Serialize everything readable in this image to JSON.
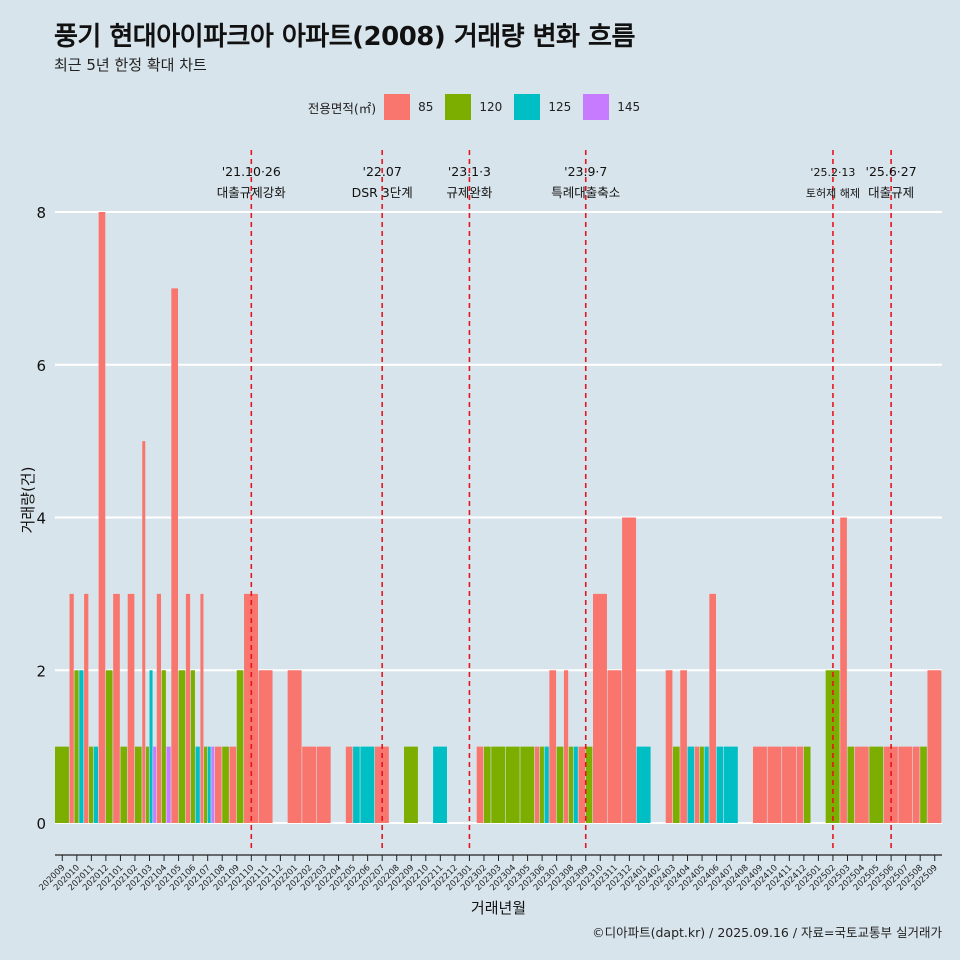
{
  "title": "풍기 현대아이파크아 아파트(2008) 거래량 변화 흐름",
  "subtitle": "최근 5년 한정 확대 차트",
  "footer": "©디아파트(dapt.kr) / 2025.09.16 / 자료=국토교통부 실거래가",
  "legend": {
    "title": "전용면적(㎡)",
    "items": [
      {
        "label": "85",
        "color": "#f8766d"
      },
      {
        "label": "120",
        "color": "#7cae00"
      },
      {
        "label": "125",
        "color": "#00bfc4"
      },
      {
        "label": "145",
        "color": "#c77cff"
      }
    ]
  },
  "chart_data": {
    "type": "bar",
    "xlabel": "거래년월",
    "ylabel": "거래량(건)",
    "ylim": [
      0,
      8
    ],
    "yticks": [
      0,
      2,
      4,
      6,
      8
    ],
    "grid": true,
    "legend_position": "top",
    "series_names": [
      "85",
      "120",
      "125",
      "145"
    ],
    "x_tick_labels": [
      "202009",
      "202010",
      "202011",
      "202012",
      "202101",
      "202102",
      "202103",
      "202104",
      "202105",
      "202106",
      "202107",
      "202108",
      "202109",
      "202110",
      "202111",
      "202112",
      "202201",
      "202202",
      "202203",
      "202204",
      "202205",
      "202206",
      "202207",
      "202208",
      "202209",
      "202210",
      "202211",
      "202212",
      "202301",
      "202302",
      "202303",
      "202304",
      "202305",
      "202306",
      "202307",
      "202308",
      "202309",
      "202310",
      "202311",
      "202312",
      "202401",
      "202402",
      "202403",
      "202404",
      "202405",
      "202406",
      "202407",
      "202408",
      "202409",
      "202410",
      "202411",
      "202412",
      "202501",
      "202502",
      "202503",
      "202504",
      "202505",
      "202506",
      "202507",
      "202508",
      "202509"
    ],
    "months": [
      {
        "m": "202009",
        "v": [
          0,
          1,
          0,
          0
        ]
      },
      {
        "m": "202010",
        "v": [
          3,
          2,
          2,
          0
        ]
      },
      {
        "m": "202011",
        "v": [
          3,
          1,
          1,
          0
        ]
      },
      {
        "m": "202012",
        "v": [
          8,
          2,
          0,
          0
        ]
      },
      {
        "m": "202101",
        "v": [
          3,
          1,
          0,
          0
        ]
      },
      {
        "m": "202102",
        "v": [
          3,
          1,
          0,
          0
        ]
      },
      {
        "m": "202103",
        "v": [
          5,
          1,
          2,
          1
        ]
      },
      {
        "m": "202104",
        "v": [
          3,
          2,
          0,
          1
        ]
      },
      {
        "m": "202105",
        "v": [
          7,
          2,
          0,
          0
        ]
      },
      {
        "m": "202106",
        "v": [
          3,
          2,
          1,
          0
        ]
      },
      {
        "m": "202107",
        "v": [
          3,
          1,
          1,
          1
        ]
      },
      {
        "m": "202108",
        "v": [
          1,
          1,
          0,
          0
        ]
      },
      {
        "m": "202109",
        "v": [
          1,
          2,
          0,
          0
        ]
      },
      {
        "m": "202110",
        "v": [
          3,
          0,
          0,
          0
        ]
      },
      {
        "m": "202111",
        "v": [
          2,
          0,
          0,
          0
        ]
      },
      {
        "m": "202112",
        "v": [
          0,
          0,
          0,
          0
        ]
      },
      {
        "m": "202201",
        "v": [
          2,
          0,
          0,
          0
        ]
      },
      {
        "m": "202202",
        "v": [
          1,
          0,
          0,
          0
        ]
      },
      {
        "m": "202203",
        "v": [
          1,
          0,
          0,
          0
        ]
      },
      {
        "m": "202204",
        "v": [
          0,
          0,
          0,
          0
        ]
      },
      {
        "m": "202205",
        "v": [
          1,
          0,
          1,
          0
        ]
      },
      {
        "m": "202206",
        "v": [
          0,
          0,
          1,
          0
        ]
      },
      {
        "m": "202207",
        "v": [
          1,
          0,
          0,
          0
        ]
      },
      {
        "m": "202208",
        "v": [
          0,
          0,
          0,
          0
        ]
      },
      {
        "m": "202209",
        "v": [
          0,
          1,
          0,
          0
        ]
      },
      {
        "m": "202210",
        "v": [
          0,
          0,
          0,
          0
        ]
      },
      {
        "m": "202211",
        "v": [
          0,
          0,
          1,
          0
        ]
      },
      {
        "m": "202212",
        "v": [
          0,
          0,
          0,
          0
        ]
      },
      {
        "m": "202301",
        "v": [
          0,
          0,
          0,
          0
        ]
      },
      {
        "m": "202302",
        "v": [
          1,
          1,
          0,
          0
        ]
      },
      {
        "m": "202303",
        "v": [
          0,
          1,
          0,
          0
        ]
      },
      {
        "m": "202304",
        "v": [
          0,
          1,
          0,
          0
        ]
      },
      {
        "m": "202305",
        "v": [
          0,
          1,
          0,
          0
        ]
      },
      {
        "m": "202306",
        "v": [
          1,
          1,
          1,
          0
        ]
      },
      {
        "m": "202307",
        "v": [
          2,
          1,
          0,
          0
        ]
      },
      {
        "m": "202308",
        "v": [
          2,
          1,
          1,
          0
        ]
      },
      {
        "m": "202309",
        "v": [
          1,
          1,
          0,
          0
        ]
      },
      {
        "m": "202310",
        "v": [
          3,
          0,
          0,
          0
        ]
      },
      {
        "m": "202311",
        "v": [
          2,
          0,
          0,
          0
        ]
      },
      {
        "m": "202312",
        "v": [
          4,
          0,
          0,
          0
        ]
      },
      {
        "m": "202401",
        "v": [
          0,
          0,
          1,
          0
        ]
      },
      {
        "m": "202402",
        "v": [
          0,
          0,
          0,
          0
        ]
      },
      {
        "m": "202403",
        "v": [
          2,
          1,
          0,
          0
        ]
      },
      {
        "m": "202404",
        "v": [
          2,
          0,
          1,
          0
        ]
      },
      {
        "m": "202405",
        "v": [
          1,
          1,
          1,
          0
        ]
      },
      {
        "m": "202406",
        "v": [
          3,
          0,
          1,
          0
        ]
      },
      {
        "m": "202407",
        "v": [
          0,
          0,
          1,
          0
        ]
      },
      {
        "m": "202408",
        "v": [
          0,
          0,
          0,
          0
        ]
      },
      {
        "m": "202409",
        "v": [
          1,
          0,
          0,
          0
        ]
      },
      {
        "m": "202410",
        "v": [
          1,
          0,
          0,
          0
        ]
      },
      {
        "m": "202411",
        "v": [
          1,
          0,
          0,
          0
        ]
      },
      {
        "m": "202412",
        "v": [
          1,
          1,
          0,
          0
        ]
      },
      {
        "m": "202501",
        "v": [
          0,
          0,
          0,
          0
        ]
      },
      {
        "m": "202502",
        "v": [
          0,
          2,
          0,
          0
        ]
      },
      {
        "m": "202503",
        "v": [
          4,
          1,
          0,
          0
        ]
      },
      {
        "m": "202504",
        "v": [
          1,
          0,
          0,
          0
        ]
      },
      {
        "m": "202505",
        "v": [
          0,
          1,
          0,
          0
        ]
      },
      {
        "m": "202506",
        "v": [
          1,
          0,
          0,
          0
        ]
      },
      {
        "m": "202507",
        "v": [
          1,
          0,
          0,
          0
        ]
      },
      {
        "m": "202508",
        "v": [
          1,
          1,
          0,
          0
        ]
      },
      {
        "m": "202509",
        "v": [
          2,
          0,
          0,
          0
        ]
      }
    ],
    "annotations": [
      {
        "month": "202110",
        "date": "'21.10·26",
        "label": "대출규제강화"
      },
      {
        "month": "202207",
        "date": "'22.07",
        "label": "DSR 3단계"
      },
      {
        "month": "202301",
        "date": "'23.1·3",
        "label": "규제완화"
      },
      {
        "month": "202309",
        "date": "'23.9·7",
        "label": "특례대출축소"
      },
      {
        "month": "202502",
        "date": "'25.2·13",
        "label": "토허제 해제"
      },
      {
        "month": "202506",
        "date": "'25.6·27",
        "label": "대출규제"
      }
    ]
  }
}
